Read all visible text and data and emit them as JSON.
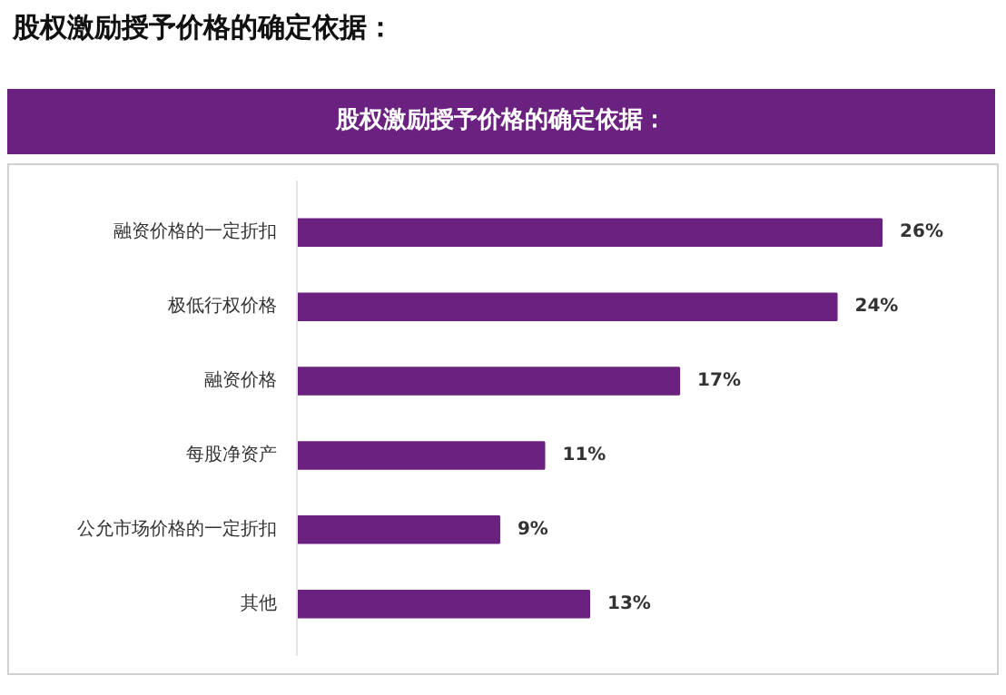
{
  "chart_data": {
    "type": "bar",
    "orientation": "horizontal",
    "title": "股权激励授予价格的确定依据：",
    "subtitle": "股权激励授予价格的确定依据：",
    "categories": [
      "融资价格的一定折扣",
      "极低行权价格",
      "融资价格",
      "每股净资产",
      "公允市场价格的一定折扣",
      "其他"
    ],
    "values": [
      26,
      24,
      17,
      11,
      9,
      13
    ],
    "value_labels": [
      "26%",
      "24%",
      "17%",
      "11%",
      "9%",
      "13%"
    ],
    "color": "#6b2180",
    "grid": false,
    "tick_labels": "y"
  }
}
